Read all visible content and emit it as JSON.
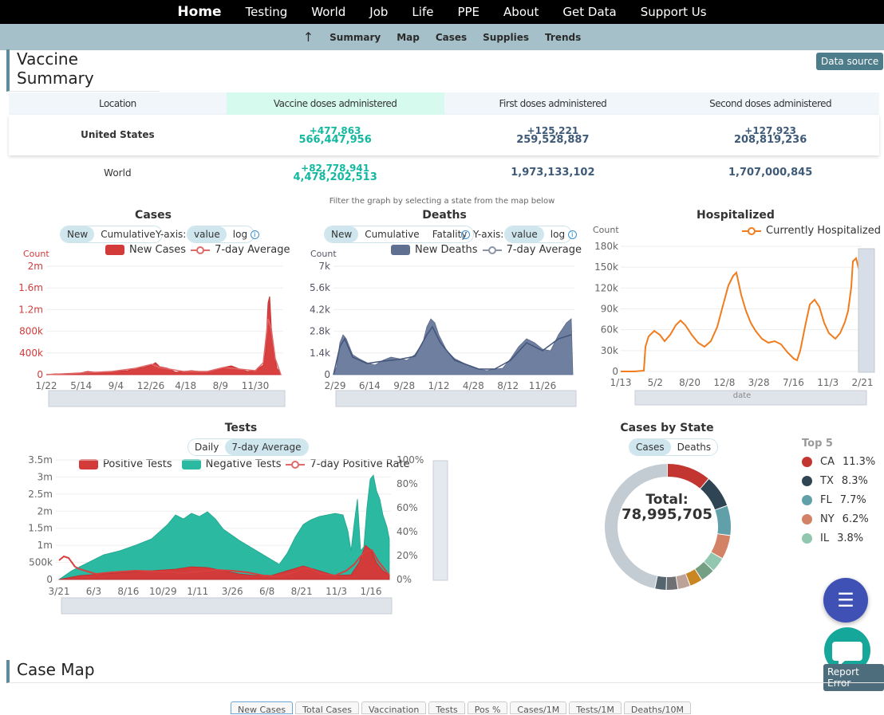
{
  "nav": {
    "items": [
      "Home",
      "Testing",
      "World",
      "Job",
      "Life",
      "PPE",
      "About",
      "Get Data",
      "Support Us"
    ],
    "sub": [
      "Summary",
      "Map",
      "Cases",
      "Supplies",
      "Trends"
    ]
  },
  "vaccine": {
    "title": "Vaccine Summary",
    "data_source": "Data source",
    "headers": [
      "Location",
      "Vaccine doses administered",
      "First doses administered",
      "Second doses administered"
    ],
    "us": {
      "location": "United States",
      "doses_delta": "+477,863",
      "doses": "566,447,956",
      "first_delta": "+125,221",
      "first": "259,528,887",
      "second_delta": "+127,923",
      "second": "208,819,236"
    },
    "world": {
      "location": "World",
      "doses_delta": "+82,778,941",
      "doses": "4,478,202,513",
      "first": "1,973,133,102",
      "second": "1,707,000,845"
    }
  },
  "hint": "Filter the graph by selecting a state from the map below",
  "cases": {
    "title": "Cases",
    "t1": "New",
    "t2": "Cumulative",
    "yaxis": "Y-axis:",
    "y1": "value",
    "y2": "log",
    "leg1": "New Cases",
    "leg2": "7-day Average",
    "count": "Count",
    "yticks": [
      "2m",
      "1.6m",
      "1.2m",
      "800k",
      "400k",
      "0"
    ],
    "xticks": [
      "1/22",
      "5/14",
      "9/4",
      "12/26",
      "4/18",
      "8/9",
      "11/30"
    ]
  },
  "deaths": {
    "title": "Deaths",
    "t1": "New",
    "t2": "Cumulative",
    "t3": "Fatality",
    "yaxis": "Y-axis:",
    "y1": "value",
    "y2": "log",
    "leg1": "New Deaths",
    "leg2": "7-day Average",
    "count": "Count",
    "yticks": [
      "7k",
      "5.6k",
      "4.2k",
      "2.8k",
      "1.4k",
      "0"
    ],
    "xticks": [
      "2/29",
      "6/14",
      "9/28",
      "1/12",
      "4/28",
      "8/12",
      "11/26"
    ]
  },
  "hosp": {
    "title": "Hospitalized",
    "leg1": "Currently Hospitalized",
    "count": "Count",
    "xname": "date",
    "yticks": [
      "180k",
      "150k",
      "120k",
      "90k",
      "60k",
      "30k",
      "0"
    ],
    "xticks": [
      "1/13",
      "5/2",
      "8/20",
      "12/8",
      "3/28",
      "7/16",
      "11/3",
      "2/21"
    ]
  },
  "tests": {
    "title": "Tests",
    "t1": "Daily",
    "t2": "7-day Average",
    "leg1": "Positive Tests",
    "leg2": "Negative Tests",
    "leg3": "7-day Positive Rate",
    "yticks": [
      "3.5m",
      "3m",
      "2.5m",
      "2m",
      "1.5m",
      "1m",
      "500k",
      "0"
    ],
    "rticks": [
      "100%",
      "80%",
      "60%",
      "40%",
      "20%",
      "0%"
    ],
    "xticks": [
      "3/21",
      "6/3",
      "8/16",
      "10/29",
      "1/11",
      "3/26",
      "6/8",
      "8/21",
      "11/3",
      "1/16"
    ]
  },
  "state": {
    "title": "Cases by State",
    "t1": "Cases",
    "t2": "Deaths",
    "total_label": "Total:",
    "total": "78,995,705",
    "top5_title": "Top 5",
    "top5": [
      {
        "code": "CA",
        "pct": "11.3%",
        "color": "#c23531"
      },
      {
        "code": "TX",
        "pct": "8.3%",
        "color": "#2f4554"
      },
      {
        "code": "FL",
        "pct": "7.7%",
        "color": "#61a0a8"
      },
      {
        "code": "NY",
        "pct": "6.2%",
        "color": "#d48265"
      },
      {
        "code": "IL",
        "pct": "3.8%",
        "color": "#91c7ae"
      }
    ]
  },
  "casemap": {
    "title": "Case Map",
    "tabs": [
      "New Cases",
      "Total Cases",
      "Vaccination",
      "Tests",
      "Pos %",
      "Cases/1M",
      "Tests/1M",
      "Deaths/10M"
    ]
  },
  "report_error": "Report Error",
  "chart_data": [
    {
      "type": "bar",
      "title": "Cases",
      "ylabel": "Count",
      "ylim": [
        0,
        2000000
      ],
      "series": [
        {
          "name": "New Cases"
        },
        {
          "name": "7-day Average"
        }
      ]
    },
    {
      "type": "bar",
      "title": "Deaths",
      "ylabel": "Count",
      "ylim": [
        0,
        7000
      ],
      "series": [
        {
          "name": "New Deaths"
        },
        {
          "name": "7-day Average"
        }
      ]
    },
    {
      "type": "line",
      "title": "Hospitalized",
      "ylabel": "Count",
      "ylim": [
        0,
        180000
      ],
      "series": [
        {
          "name": "Currently Hospitalized"
        }
      ]
    },
    {
      "type": "area",
      "title": "Tests",
      "ylim": [
        0,
        3500000
      ],
      "series": [
        {
          "name": "Positive Tests"
        },
        {
          "name": "Negative Tests"
        },
        {
          "name": "7-day Positive Rate"
        }
      ]
    },
    {
      "type": "pie",
      "title": "Cases by State",
      "categories": [
        "CA",
        "TX",
        "FL",
        "NY",
        "IL"
      ],
      "values": [
        11.3,
        8.3,
        7.7,
        6.2,
        3.8
      ]
    }
  ]
}
